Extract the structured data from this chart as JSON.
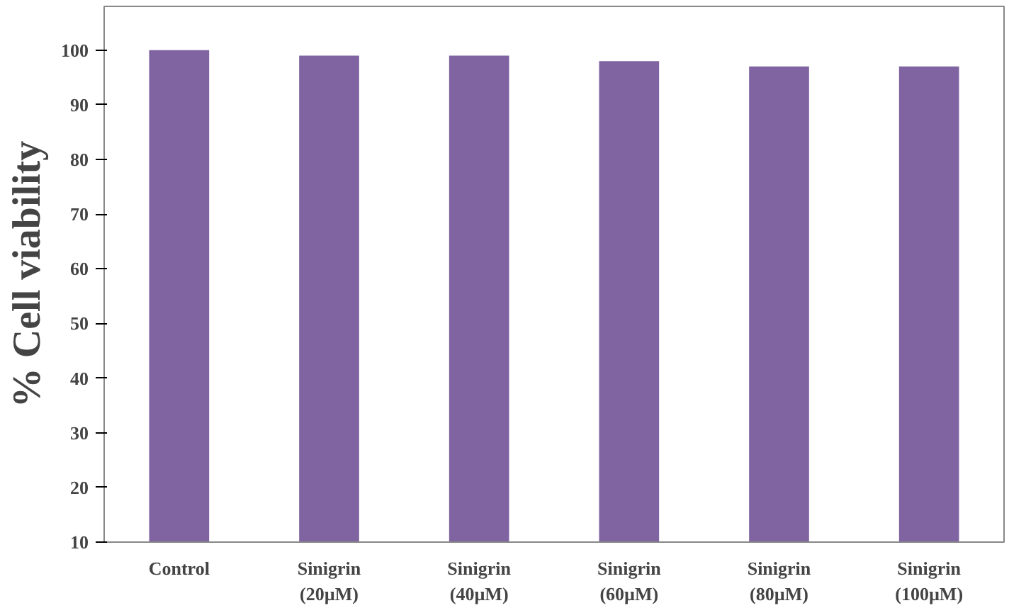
{
  "chart_data": {
    "type": "bar",
    "ylabel": "% Cell viability",
    "categories": [
      "Control",
      "Sinigrin\n(20µM)",
      "Sinigrin\n(40µM)",
      "Sinigrin\n(60µM)",
      "Sinigrin\n(80µM)",
      "Sinigrin\n(100µM)"
    ],
    "values": [
      100,
      99,
      99,
      98,
      97,
      97
    ],
    "color": "#8064a2",
    "ylim": [
      10,
      108
    ],
    "yticks": [
      10,
      20,
      30,
      40,
      50,
      60,
      70,
      80,
      90,
      100
    ],
    "grid": false
  }
}
